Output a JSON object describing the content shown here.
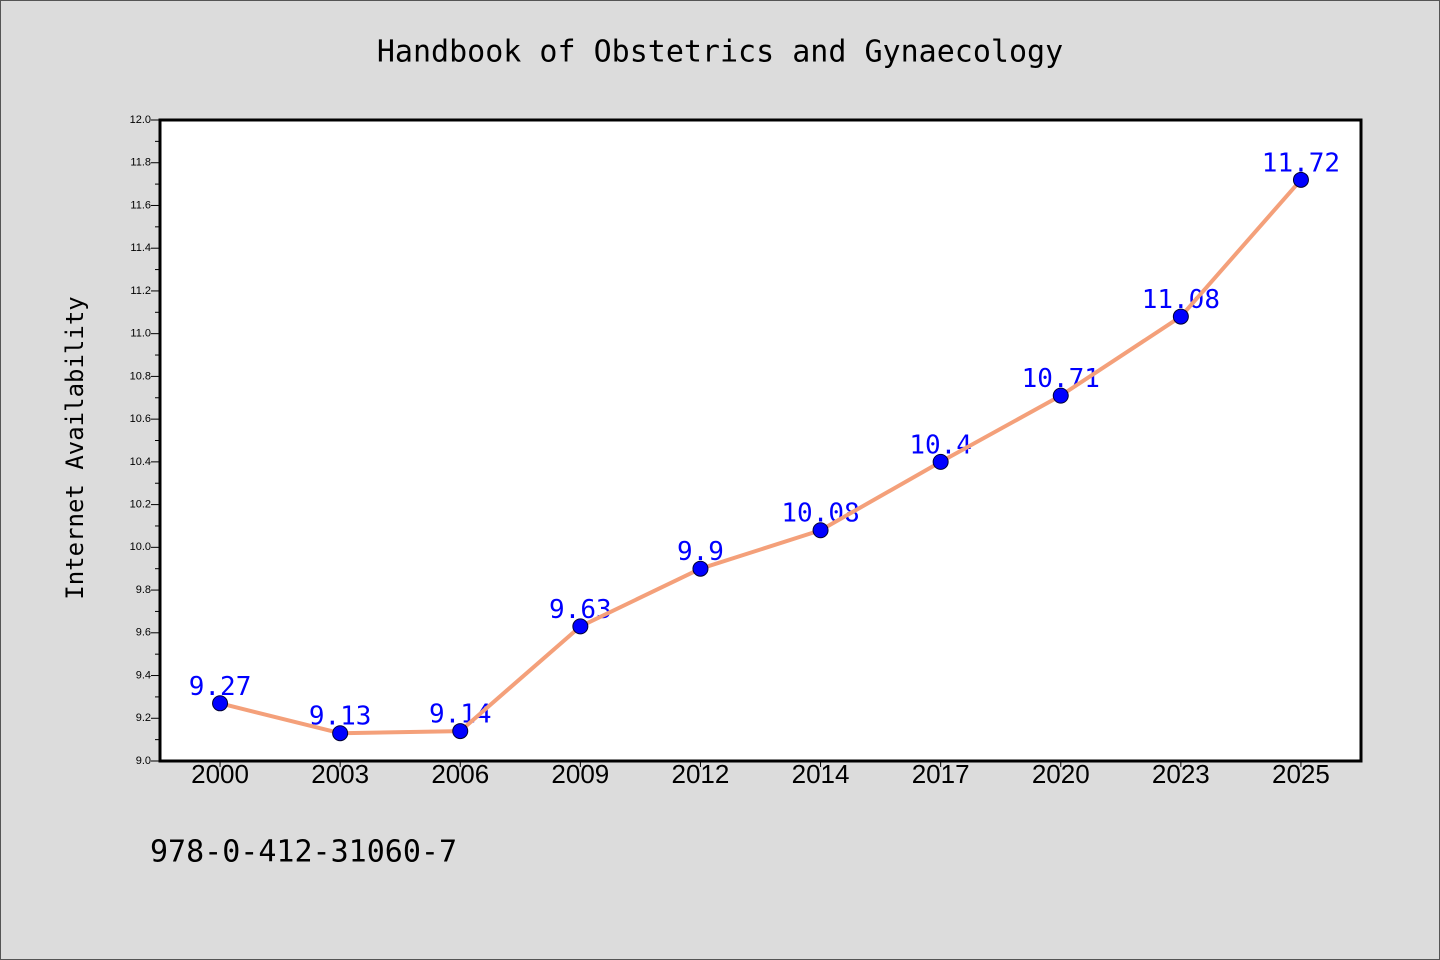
{
  "chart_data": {
    "type": "line",
    "title": "Handbook of Obstetrics and Gynaecology",
    "xlabel": "",
    "ylabel": "Internet Availability",
    "categories": [
      "2000",
      "2003",
      "2006",
      "2009",
      "2012",
      "2014",
      "2017",
      "2020",
      "2023",
      "2025"
    ],
    "series": [
      {
        "values": [
          9.27,
          9.13,
          9.14,
          9.63,
          9.9,
          10.08,
          10.4,
          10.71,
          11.08,
          11.72
        ]
      }
    ],
    "ylim": [
      9.0,
      12.0
    ],
    "ytick_labels": [
      "9.0",
      "9.2",
      "9.4",
      "9.6",
      "9.8",
      "10.0",
      "10.2",
      "10.4",
      "10.6",
      "10.8",
      "11.0",
      "11.2",
      "11.4",
      "11.6",
      "11.8",
      "12.0"
    ],
    "data_labels": true,
    "grid": false,
    "colors": {
      "figure_background": "#dcdcdc",
      "plot_background": "#ffffff",
      "line": "#f4a07a",
      "marker": "#0000ff",
      "data_label": "#0000ff"
    }
  },
  "footer": {
    "isbn": "978-0-412-31060-7"
  }
}
